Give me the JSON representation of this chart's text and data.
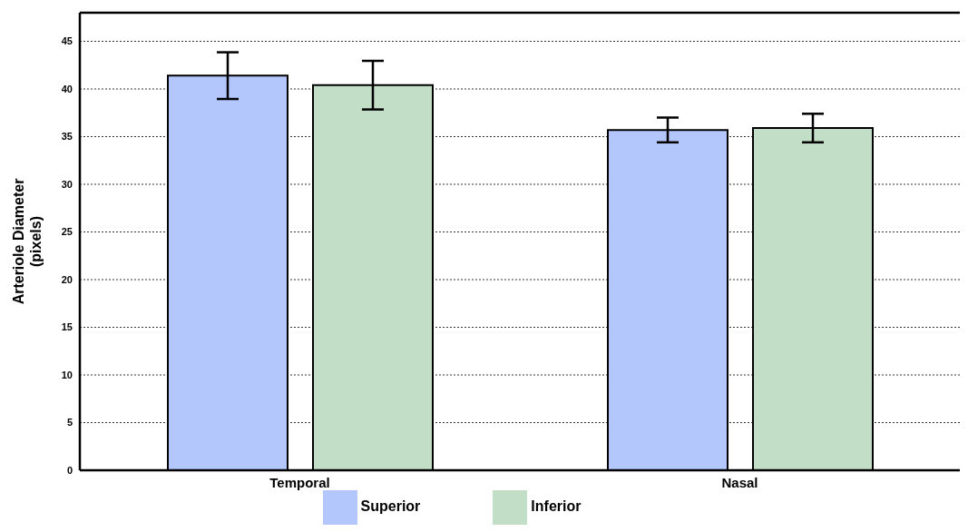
{
  "chart_data": {
    "type": "bar",
    "ylabel": "Arteriole Diameter\n(pixels)",
    "categories": [
      "Temporal",
      "Nasal"
    ],
    "series": [
      {
        "name": "Superior",
        "color": "#b3c7fc",
        "values": [
          41.4,
          35.7
        ],
        "errors": [
          2.45,
          1.3
        ]
      },
      {
        "name": "Inferior",
        "color": "#c2dec7",
        "values": [
          40.4,
          35.9
        ],
        "errors": [
          2.55,
          1.5
        ]
      }
    ],
    "ylim": [
      0,
      48
    ],
    "yticks": [
      0,
      5,
      10,
      15,
      20,
      25,
      30,
      35,
      40,
      45
    ],
    "grid": "y",
    "legend": "bottom"
  }
}
